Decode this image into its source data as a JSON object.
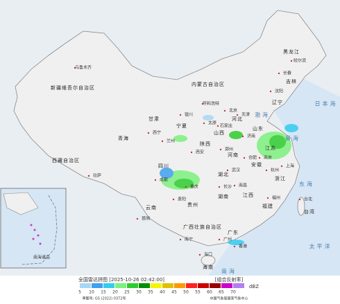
{
  "header": {
    "title": "全国雷达拼图 [2025-10-26 02:42:00]",
    "product": "[组合反射率]"
  },
  "legend": {
    "levels": [
      {
        "value": 5,
        "color": "#a6d8f5"
      },
      {
        "value": 10,
        "color": "#3fa0f0"
      },
      {
        "value": 15,
        "color": "#33ccf0"
      },
      {
        "value": 20,
        "color": "#7ef07e"
      },
      {
        "value": 25,
        "color": "#2ecc2e"
      },
      {
        "value": 30,
        "color": "#008f00"
      },
      {
        "value": 35,
        "color": "#f5f500"
      },
      {
        "value": 40,
        "color": "#e0c000"
      },
      {
        "value": 45,
        "color": "#ff9900"
      },
      {
        "value": 50,
        "color": "#ff2020"
      },
      {
        "value": 55,
        "color": "#cc0000"
      },
      {
        "value": 60,
        "color": "#990000"
      },
      {
        "value": 65,
        "color": "#cc00cc"
      },
      {
        "value": 70,
        "color": "#b080f0"
      }
    ],
    "unit": "dBZ"
  },
  "footer": {
    "approval": "审图号: GS (2022) 0372号",
    "source": "中国气象局国家气象中心"
  },
  "regions": [
    "新疆维吾尔自治区",
    "西藏自治区",
    "青海",
    "甘肃",
    "内蒙古自治区",
    "黑龙江",
    "吉林",
    "辽宁",
    "河北",
    "山西",
    "宁夏",
    "陕西",
    "山东",
    "河南",
    "江苏",
    "安徽",
    "四川",
    "湖北",
    "湖南",
    "贵州",
    "云南",
    "广西壮族自治区",
    "广东",
    "江西",
    "浙江",
    "福建",
    "海南",
    "台湾"
  ],
  "cities": [
    "乌鲁木齐",
    "拉萨",
    "西宁",
    "兰州",
    "银川",
    "呼和浩特",
    "哈尔滨",
    "长春",
    "沈阳",
    "北京",
    "天津",
    "石家庄",
    "太原",
    "济南",
    "郑州",
    "西安",
    "成都",
    "重庆",
    "武汉",
    "长沙",
    "贵阳",
    "昆明",
    "南宁",
    "广州",
    "福州",
    "杭州",
    "南昌",
    "合肥",
    "南京",
    "上海",
    "香港",
    "海口",
    "台北"
  ],
  "seas": [
    "渤海",
    "黄海",
    "东海",
    "南海",
    "太平洋",
    "日本海"
  ],
  "inset": {
    "label": "南海诸岛"
  }
}
